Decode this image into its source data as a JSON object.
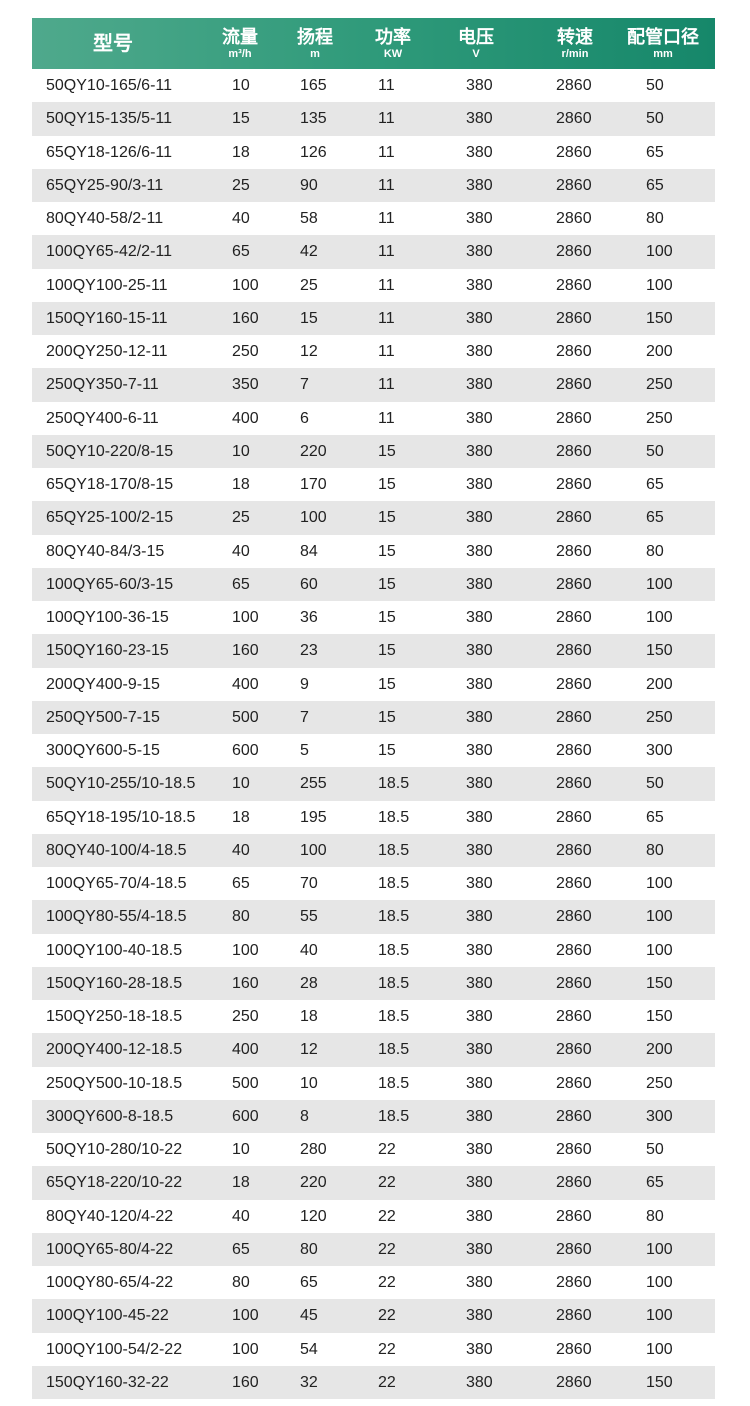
{
  "colors": {
    "header_start": "#4fa98c",
    "header_end": "#16876a",
    "row_alt": "#e6e6e6"
  },
  "header": [
    {
      "title": "型号",
      "unit": ""
    },
    {
      "title": "流量",
      "unit": "m³/h"
    },
    {
      "title": "扬程",
      "unit": "m"
    },
    {
      "title": "功率",
      "unit": "KW"
    },
    {
      "title": "电压",
      "unit": "V"
    },
    {
      "title": "转速",
      "unit": "r/min"
    },
    {
      "title": "配管口径",
      "unit": "mm"
    }
  ],
  "rows": [
    [
      "50QY10-165/6-11",
      "10",
      "165",
      "11",
      "380",
      "2860",
      "50"
    ],
    [
      "50QY15-135/5-11",
      "15",
      "135",
      "11",
      "380",
      "2860",
      "50"
    ],
    [
      "65QY18-126/6-11",
      "18",
      "126",
      "11",
      "380",
      "2860",
      "65"
    ],
    [
      "65QY25-90/3-11",
      "25",
      "90",
      "11",
      "380",
      "2860",
      "65"
    ],
    [
      "80QY40-58/2-11",
      "40",
      "58",
      "11",
      "380",
      "2860",
      "80"
    ],
    [
      "100QY65-42/2-11",
      "65",
      "42",
      "11",
      "380",
      "2860",
      "100"
    ],
    [
      "100QY100-25-11",
      "100",
      "25",
      "11",
      "380",
      "2860",
      "100"
    ],
    [
      "150QY160-15-11",
      "160",
      "15",
      "11",
      "380",
      "2860",
      "150"
    ],
    [
      "200QY250-12-11",
      "250",
      "12",
      "11",
      "380",
      "2860",
      "200"
    ],
    [
      "250QY350-7-11",
      "350",
      "7",
      "11",
      "380",
      "2860",
      "250"
    ],
    [
      "250QY400-6-11",
      "400",
      "6",
      "11",
      "380",
      "2860",
      "250"
    ],
    [
      "50QY10-220/8-15",
      "10",
      "220",
      "15",
      "380",
      "2860",
      "50"
    ],
    [
      "65QY18-170/8-15",
      "18",
      "170",
      "15",
      "380",
      "2860",
      "65"
    ],
    [
      "65QY25-100/2-15",
      "25",
      "100",
      "15",
      "380",
      "2860",
      "65"
    ],
    [
      "80QY40-84/3-15",
      "40",
      "84",
      "15",
      "380",
      "2860",
      "80"
    ],
    [
      "100QY65-60/3-15",
      "65",
      "60",
      "15",
      "380",
      "2860",
      "100"
    ],
    [
      "100QY100-36-15",
      "100",
      "36",
      "15",
      "380",
      "2860",
      "100"
    ],
    [
      "150QY160-23-15",
      "160",
      "23",
      "15",
      "380",
      "2860",
      "150"
    ],
    [
      "200QY400-9-15",
      "400",
      "9",
      "15",
      "380",
      "2860",
      "200"
    ],
    [
      "250QY500-7-15",
      "500",
      "7",
      "15",
      "380",
      "2860",
      "250"
    ],
    [
      "300QY600-5-15",
      "600",
      "5",
      "15",
      "380",
      "2860",
      "300"
    ],
    [
      "50QY10-255/10-18.5",
      "10",
      "255",
      "18.5",
      "380",
      "2860",
      "50"
    ],
    [
      "65QY18-195/10-18.5",
      "18",
      "195",
      "18.5",
      "380",
      "2860",
      "65"
    ],
    [
      "80QY40-100/4-18.5",
      "40",
      "100",
      "18.5",
      "380",
      "2860",
      "80"
    ],
    [
      "100QY65-70/4-18.5",
      "65",
      "70",
      "18.5",
      "380",
      "2860",
      "100"
    ],
    [
      "100QY80-55/4-18.5",
      "80",
      "55",
      "18.5",
      "380",
      "2860",
      "100"
    ],
    [
      "100QY100-40-18.5",
      "100",
      "40",
      "18.5",
      "380",
      "2860",
      "100"
    ],
    [
      "150QY160-28-18.5",
      "160",
      "28",
      "18.5",
      "380",
      "2860",
      "150"
    ],
    [
      "150QY250-18-18.5",
      "250",
      "18",
      "18.5",
      "380",
      "2860",
      "150"
    ],
    [
      "200QY400-12-18.5",
      "400",
      "12",
      "18.5",
      "380",
      "2860",
      "200"
    ],
    [
      "250QY500-10-18.5",
      "500",
      "10",
      "18.5",
      "380",
      "2860",
      "250"
    ],
    [
      "300QY600-8-18.5",
      "600",
      "8",
      "18.5",
      "380",
      "2860",
      "300"
    ],
    [
      "50QY10-280/10-22",
      "10",
      "280",
      "22",
      "380",
      "2860",
      "50"
    ],
    [
      "65QY18-220/10-22",
      "18",
      "220",
      "22",
      "380",
      "2860",
      "65"
    ],
    [
      "80QY40-120/4-22",
      "40",
      "120",
      "22",
      "380",
      "2860",
      "80"
    ],
    [
      "100QY65-80/4-22",
      "65",
      "80",
      "22",
      "380",
      "2860",
      "100"
    ],
    [
      "100QY80-65/4-22",
      "80",
      "65",
      "22",
      "380",
      "2860",
      "100"
    ],
    [
      "100QY100-45-22",
      "100",
      "45",
      "22",
      "380",
      "2860",
      "100"
    ],
    [
      "100QY100-54/2-22",
      "100",
      "54",
      "22",
      "380",
      "2860",
      "100"
    ],
    [
      "150QY160-32-22",
      "160",
      "32",
      "22",
      "380",
      "2860",
      "150"
    ]
  ]
}
